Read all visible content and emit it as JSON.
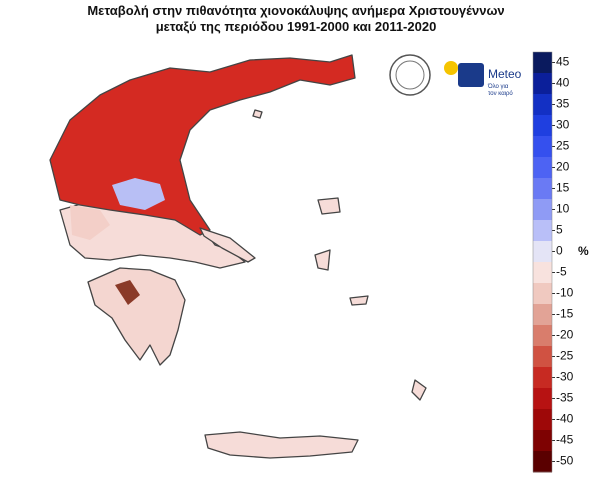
{
  "title": [
    "Μεταβολή στην πιθανότητα χιονοκάλυψης ανήμερα Χριστουγέννων",
    "μεταξύ της περιόδου 1991-2000 και 2011-2020"
  ],
  "colorbar": {
    "ticks": [
      45,
      40,
      35,
      30,
      25,
      20,
      15,
      10,
      5,
      0,
      -5,
      -10,
      -15,
      -20,
      -25,
      -30,
      -35,
      -40,
      -45,
      -50
    ],
    "colors": [
      "#0a1a5e",
      "#0b1f9a",
      "#1330c4",
      "#1f3fe0",
      "#3550ee",
      "#4d63f3",
      "#6a7af4",
      "#8f9bf5",
      "#b9bff8",
      "#e4e4f6",
      "#f8e2de",
      "#f0c9c0",
      "#e2a396",
      "#d97d6c",
      "#d05242",
      "#c72a22",
      "#b71212",
      "#9e0808",
      "#7e0202",
      "#5a0000"
    ],
    "unit": "%"
  },
  "logo": {
    "name": "Meteo",
    "slogan": [
      "Όλο για",
      "τον καιρό"
    ]
  }
}
